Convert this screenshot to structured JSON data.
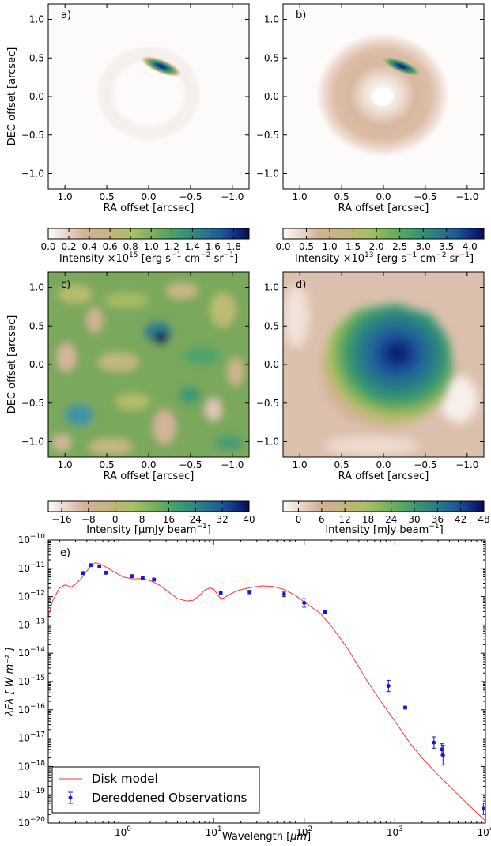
{
  "colors": {
    "model_line": "#ff3333",
    "observations": "#1a1acc",
    "colormap": [
      "#fdfafa",
      "#d6b49c",
      "#c8b888",
      "#b4c46a",
      "#7cb25a",
      "#3c9c6a",
      "#2a7f86",
      "#1f5f9a",
      "#0f2c86",
      "#0a0a4a"
    ]
  },
  "panels": [
    {
      "label": "a)",
      "xlabel": "RA offset [arcsec]",
      "ylabel": "DEC offset [arcsec]",
      "xticks": [
        "1.0",
        "0.5",
        "0.0",
        "−0.5",
        "−1.0"
      ],
      "yticks": [
        "1.0",
        "0.5",
        "0.0",
        "−0.5",
        "−1.0"
      ],
      "colorbar": {
        "ticks": [
          "0.0",
          "0.2",
          "0.4",
          "0.6",
          "0.8",
          "1.0",
          "1.2",
          "1.4",
          "1.6",
          "1.8"
        ],
        "label_a": "Intensity ",
        "label_mult": "×10",
        "label_exp": "15",
        "label_b": " [erg s",
        "label_b_exp": "−1",
        "label_c": " cm",
        "label_c_exp": "−2",
        "label_d": " sr",
        "label_d_exp": "−1",
        "label_e": "]"
      }
    },
    {
      "label": "b)",
      "xlabel": "RA offset [arcsec]",
      "xticks": [
        "1.0",
        "0.5",
        "0.0",
        "−0.5",
        "−1.0"
      ],
      "yticks": [
        "1.0",
        "0.5",
        "0.0",
        "−0.5",
        "−1.0"
      ],
      "colorbar": {
        "ticks": [
          "0.0",
          "0.5",
          "1.0",
          "1.5",
          "2.0",
          "2.5",
          "3.0",
          "3.5",
          "4.0"
        ],
        "label_a": "Intensity ",
        "label_mult": "×10",
        "label_exp": "13",
        "label_b": " [erg s",
        "label_b_exp": "−1",
        "label_c": " cm",
        "label_c_exp": "−2",
        "label_d": " sr",
        "label_d_exp": "−1",
        "label_e": "]"
      }
    },
    {
      "label": "c)",
      "xlabel": "RA offset [arcsec]",
      "ylabel": "DEC offset [arcsec]",
      "xticks": [
        "1.0",
        "0.5",
        "0.0",
        "−0.5",
        "−1.0"
      ],
      "yticks": [
        "1.0",
        "0.5",
        "0.0",
        "−0.5",
        "−1.0"
      ],
      "colorbar": {
        "ticks": [
          "−16",
          "−8",
          "0",
          "8",
          "16",
          "24",
          "32",
          "40"
        ],
        "label_a": "Intensity [μmJy beam",
        "label_exp": "−1",
        "label_e": "]"
      }
    },
    {
      "label": "d)",
      "xlabel": "RA offset [arcsec]",
      "xticks": [
        "1.0",
        "0.5",
        "0.0",
        "−0.5",
        "−1.0"
      ],
      "yticks": [
        "1.0",
        "0.5",
        "0.0",
        "−0.5",
        "−1.0"
      ],
      "colorbar": {
        "ticks": [
          "0",
          "6",
          "12",
          "18",
          "24",
          "30",
          "36",
          "42",
          "48"
        ],
        "label_a": "Intensity [mJy beam",
        "label_exp": "−1",
        "label_e": "]"
      }
    }
  ],
  "chart_data": {
    "type": "line",
    "label": "e)",
    "xlabel_a": "Wavelength [",
    "xlabel_mu": "μm",
    "xlabel_b": "]",
    "ylabel": "λFλ [ W m⁻² ]",
    "xscale": "log",
    "yscale": "log",
    "xlim": [
      0.15,
      10000
    ],
    "ylim": [
      1e-20,
      1e-10
    ],
    "xticks": [
      {
        "base": "10",
        "exp": "0",
        "v": 1
      },
      {
        "base": "10",
        "exp": "1",
        "v": 10
      },
      {
        "base": "10",
        "exp": "2",
        "v": 100
      },
      {
        "base": "10",
        "exp": "3",
        "v": 1000
      },
      {
        "base": "10",
        "exp": "4",
        "v": 10000
      }
    ],
    "yticks": [
      {
        "base": "10",
        "exp": "−10",
        "v": -10
      },
      {
        "base": "10",
        "exp": "−11",
        "v": -11
      },
      {
        "base": "10",
        "exp": "−12",
        "v": -12
      },
      {
        "base": "10",
        "exp": "−13",
        "v": -13
      },
      {
        "base": "10",
        "exp": "−14",
        "v": -14
      },
      {
        "base": "10",
        "exp": "−15",
        "v": -15
      },
      {
        "base": "10",
        "exp": "−16",
        "v": -16
      },
      {
        "base": "10",
        "exp": "−17",
        "v": -17
      },
      {
        "base": "10",
        "exp": "−18",
        "v": -18
      },
      {
        "base": "10",
        "exp": "−19",
        "v": -19
      },
      {
        "base": "10",
        "exp": "−20",
        "v": -20
      }
    ],
    "legend_position": "lower-left",
    "series": [
      {
        "name": "Disk model",
        "style": "line",
        "x": [
          0.15,
          0.17,
          0.2,
          0.23,
          0.27,
          0.3,
          0.35,
          0.4,
          0.45,
          0.5,
          0.6,
          0.8,
          1.0,
          1.3,
          1.6,
          2.0,
          2.5,
          3.0,
          4.0,
          5.0,
          6.0,
          7.0,
          8.0,
          9.0,
          10.0,
          11.0,
          12.0,
          13.0,
          15.0,
          18.0,
          22.0,
          28.0,
          35.0,
          45.0,
          60.0,
          80.0,
          100.0,
          150.0,
          200.0,
          300.0,
          500.0,
          700.0,
          1000.0,
          1500.0,
          2000.0,
          3000.0,
          5000.0,
          7000.0,
          10000.0
        ],
        "y": [
          2e-13,
          8e-13,
          2e-12,
          2.6e-12,
          2.2e-12,
          2.8e-12,
          4.5e-12,
          8e-12,
          1.3e-11,
          1.6e-11,
          1.3e-11,
          7.5e-12,
          5e-12,
          4.2e-12,
          4.4e-12,
          3.7e-12,
          2.6e-12,
          1.7e-12,
          8.5e-13,
          7e-13,
          7.5e-13,
          1.1e-12,
          1.7e-12,
          2e-12,
          1.9e-12,
          1.2e-12,
          8.5e-13,
          9e-13,
          1.2e-12,
          1.6e-12,
          1.9e-12,
          2.2e-12,
          2.4e-12,
          2.3e-12,
          1.8e-12,
          1.1e-12,
          6.5e-13,
          2.6e-13,
          9e-14,
          1.5e-14,
          1e-15,
          2e-16,
          4e-17,
          6e-18,
          2e-18,
          5e-19,
          1e-19,
          3.5e-20,
          1.2e-20
        ]
      },
      {
        "name": "Dereddened Observations",
        "style": "errorbar",
        "x": [
          0.36,
          0.44,
          0.55,
          0.65,
          1.25,
          1.65,
          2.2,
          12.0,
          25.0,
          60.0,
          100.0,
          170.0,
          850.0,
          1300.0,
          2700.0,
          3300.0,
          3400.0,
          9500.0
        ],
        "y": [
          6.8e-12,
          1.3e-11,
          1.15e-11,
          7e-12,
          5.3e-12,
          4.5e-12,
          4e-12,
          1.35e-12,
          1.45e-12,
          1.2e-12,
          6e-13,
          2.9e-13,
          7e-16,
          1.2e-16,
          7e-18,
          4e-18,
          2.5e-18,
          3.2e-20
        ],
        "err_decades": [
          0.05,
          0.05,
          0.05,
          0.05,
          0.05,
          0.05,
          0.05,
          0.06,
          0.06,
          0.08,
          0.15,
          0.06,
          0.2,
          0.05,
          0.2,
          0.2,
          0.35,
          0.2
        ]
      }
    ]
  }
}
